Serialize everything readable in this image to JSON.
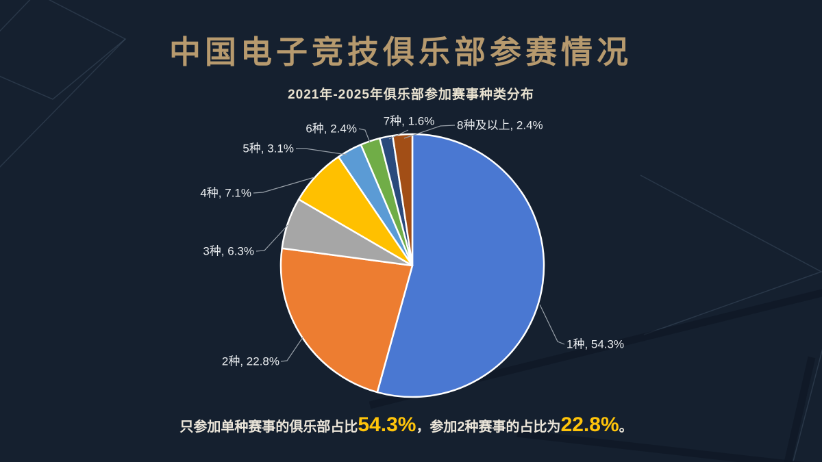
{
  "page": {
    "title": "中国电子竞技俱乐部参赛情况",
    "background_color": "#15202f",
    "title_color": "#b79a6e"
  },
  "chart_data": {
    "type": "pie",
    "title": "2021年-2025年俱乐部参加赛事种类分布",
    "categories": [
      "1种",
      "2种",
      "3种",
      "4种",
      "5种",
      "6种",
      "7种",
      "8种及以上"
    ],
    "values": [
      54.3,
      22.8,
      6.3,
      7.1,
      3.1,
      2.4,
      1.6,
      2.4
    ],
    "unit": "%",
    "colors": [
      "#4a78d2",
      "#ed7d31",
      "#a6a6a6",
      "#ffc000",
      "#5b9bd5",
      "#70ad47",
      "#2a4a7c",
      "#a24e16"
    ],
    "point_labels": [
      "1种, 54.3%",
      "2种, 22.8%",
      "3种, 6.3%",
      "4种, 7.1%",
      "5种, 3.1%",
      "6种, 2.4%",
      "7种, 1.6%",
      "8种及以上, 2.4%"
    ],
    "start_angle_deg": 0,
    "direction": "clockwise",
    "slice_border_color": "#ffffff",
    "label_color": "#e9ecef",
    "leader_line_color": "#98a0a9",
    "legend": "none"
  },
  "caption": {
    "prefix": "只参加单种赛事的俱乐部占比",
    "highlight1": "54.3%",
    "middle": "，参加2种赛事的占比为",
    "highlight2": "22.8%",
    "suffix": "。",
    "highlight_color": "#ffc40a"
  }
}
